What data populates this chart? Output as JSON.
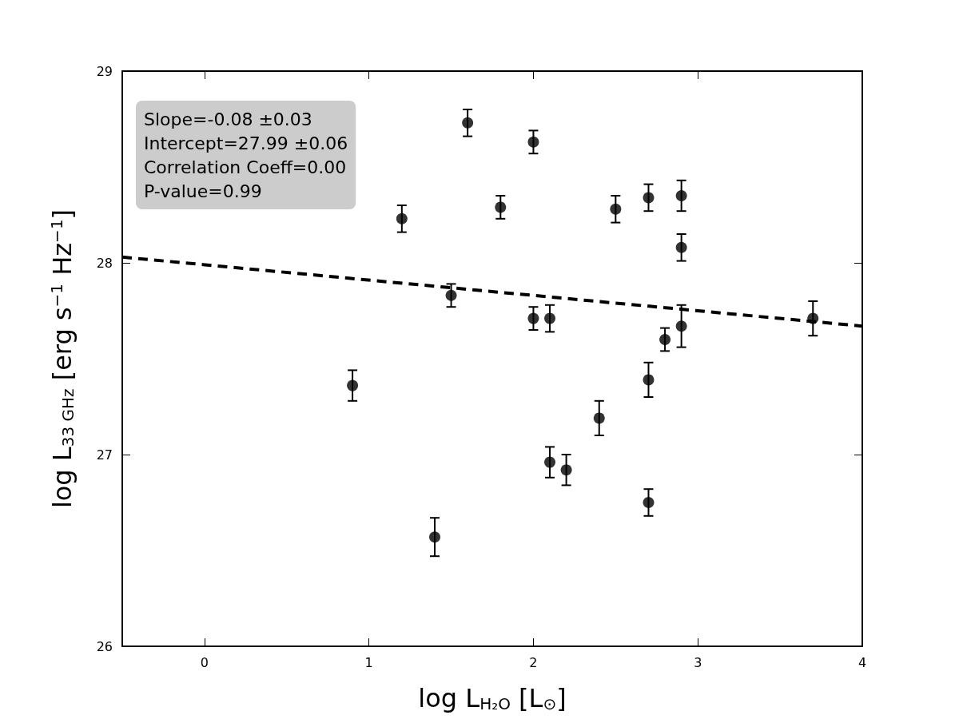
{
  "chart_data": {
    "type": "scatter",
    "xlabel": "log L$_{H₂O}$ [L$_{⊙}$]",
    "ylabel": "log L$_{33 GHz}$ [erg s$^{−1}$ Hz$^{−1}$]",
    "annotations": [
      "Slope=-0.08 ±0.03",
      "Intercept=27.99 ±0.06",
      "Correlation Coeff=0.00",
      "P-value=0.99"
    ],
    "xlim": [
      -0.5,
      4
    ],
    "xticks": [
      0,
      1,
      2,
      3,
      4
    ],
    "ylim": [
      26,
      29
    ],
    "yticks": [
      26,
      27,
      28,
      29
    ],
    "grid": false,
    "marker": "circle",
    "series": [
      {
        "color": "#000000",
        "x": [
          0.9,
          1.2,
          1.4,
          1.5,
          1.6,
          1.8,
          2.0,
          2.0,
          2.1,
          2.1,
          2.2,
          2.4,
          2.5,
          2.7,
          2.7,
          2.7,
          2.8,
          2.9,
          2.9,
          2.9,
          3.7
        ],
        "values": [
          27.36,
          28.23,
          26.57,
          27.83,
          28.73,
          28.29,
          28.63,
          27.71,
          27.71,
          26.96,
          26.92,
          27.19,
          28.28,
          28.34,
          27.39,
          26.75,
          27.6,
          28.35,
          28.08,
          27.67,
          27.71
        ],
        "errors": [
          0.08,
          0.07,
          0.1,
          0.06,
          0.07,
          0.06,
          0.06,
          0.06,
          0.07,
          0.08,
          0.08,
          0.09,
          0.07,
          0.07,
          0.09,
          0.07,
          0.06,
          0.08,
          0.07,
          0.11,
          0.09
        ]
      },
      {
        "type": "line",
        "color": "#000000",
        "line_style": "dashed",
        "marker": "none",
        "x": [
          -0.5,
          4
        ],
        "values": [
          28.03,
          27.67
        ]
      }
    ]
  }
}
